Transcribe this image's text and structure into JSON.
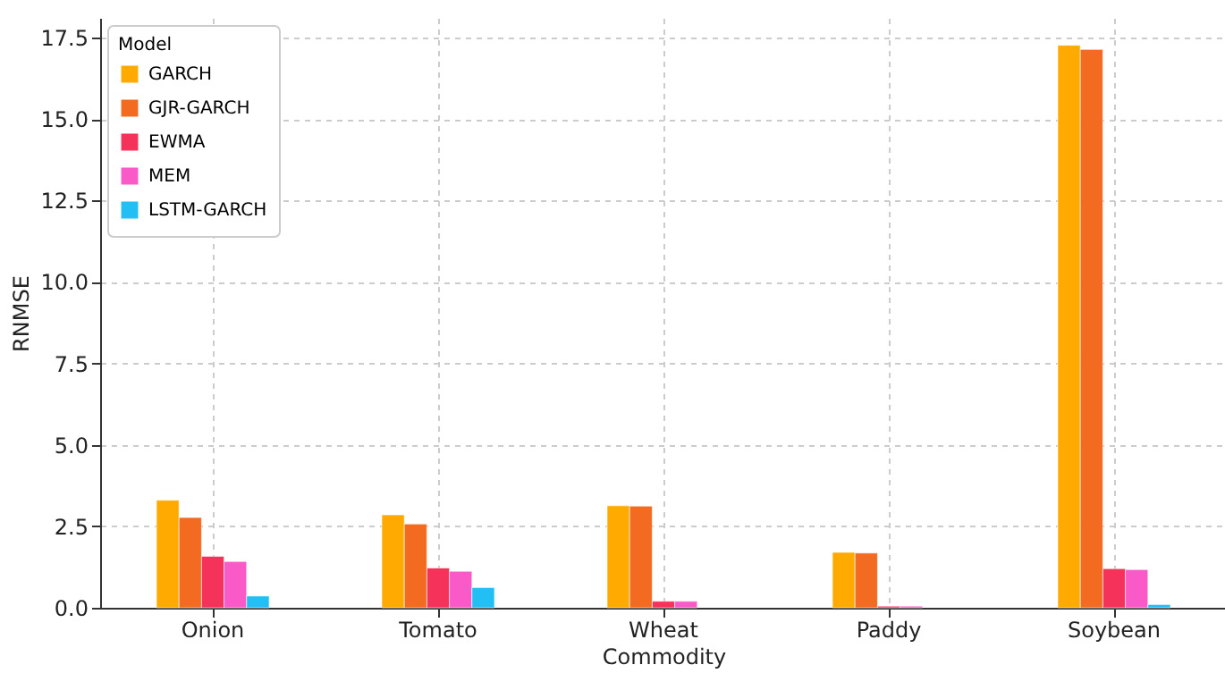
{
  "chart_data": {
    "type": "bar",
    "xlabel": "Commodity",
    "ylabel": "RNMSE",
    "legend_title": "Model",
    "categories": [
      "Onion",
      "Tomato",
      "Wheat",
      "Paddy",
      "Soybean"
    ],
    "series": [
      {
        "name": "GARCH",
        "color": "#ffaa00",
        "values": [
          3.3,
          2.85,
          3.13,
          1.7,
          17.26
        ]
      },
      {
        "name": "GJR-GARCH",
        "color": "#f26b21",
        "values": [
          2.77,
          2.57,
          3.12,
          1.68,
          17.13
        ]
      },
      {
        "name": "EWMA",
        "color": "#f5335a",
        "values": [
          1.58,
          1.22,
          0.2,
          0.05,
          1.2
        ]
      },
      {
        "name": "MEM",
        "color": "#f95ac8",
        "values": [
          1.42,
          1.12,
          0.2,
          0.05,
          1.17
        ]
      },
      {
        "name": "LSTM-GARCH",
        "color": "#22bff5",
        "values": [
          0.36,
          0.62,
          null,
          null,
          0.1
        ]
      }
    ],
    "ylim": [
      0,
      18.1
    ],
    "yticks": [
      {
        "value": 0,
        "label": "0.0"
      },
      {
        "value": 2.5,
        "label": "2.5"
      },
      {
        "value": 5,
        "label": "5.0"
      },
      {
        "value": 7.5,
        "label": "7.5"
      },
      {
        "value": 10,
        "label": "10.0"
      },
      {
        "value": 12.5,
        "label": "12.5"
      },
      {
        "value": 15,
        "label": "15.0"
      },
      {
        "value": 17.5,
        "label": "17.5"
      }
    ],
    "grid": true,
    "legend": "top left"
  }
}
